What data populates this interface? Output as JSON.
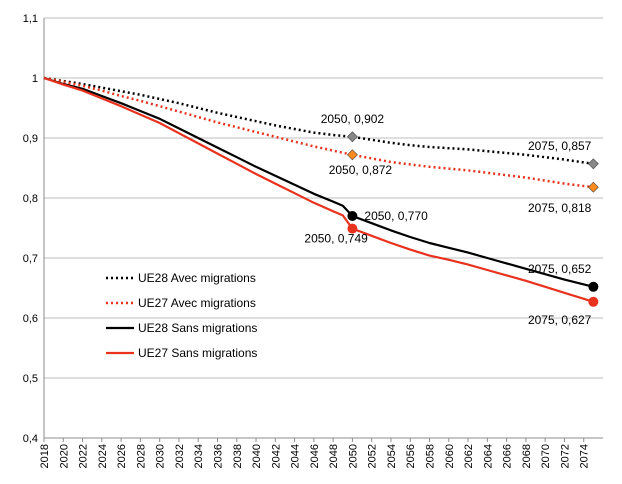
{
  "chart_data": {
    "type": "line",
    "title": "",
    "xlabel": "",
    "ylabel": "",
    "ylim": [
      0.4,
      1.1
    ],
    "xlim": [
      2018,
      2076
    ],
    "grid": "horizontal",
    "yticks": [
      "0,4",
      "0,5",
      "0,6",
      "0,7",
      "0,8",
      "0,9",
      "1",
      "1,1"
    ],
    "ytick_values": [
      0.4,
      0.5,
      0.6,
      0.7,
      0.8,
      0.9,
      1.0,
      1.1
    ],
    "xticks": [
      "2018",
      "2020",
      "2022",
      "2024",
      "2026",
      "2028",
      "2030",
      "2032",
      "2034",
      "2036",
      "2038",
      "2040",
      "2042",
      "2044",
      "2046",
      "2048",
      "2050",
      "2052",
      "2054",
      "2056",
      "2058",
      "2060",
      "2062",
      "2064",
      "2066",
      "2068",
      "2070",
      "2072",
      "2074"
    ],
    "legend_position": "left-lower",
    "series": [
      {
        "name": "UE28 Avec migrations",
        "color": "#000000",
        "style": "dotted",
        "x": [
          2018,
          2020,
          2022,
          2024,
          2026,
          2028,
          2030,
          2032,
          2034,
          2036,
          2038,
          2040,
          2042,
          2044,
          2046,
          2048,
          2050,
          2052,
          2054,
          2056,
          2058,
          2060,
          2062,
          2064,
          2066,
          2068,
          2070,
          2072,
          2075
        ],
        "y": [
          1.0,
          0.995,
          0.99,
          0.984,
          0.978,
          0.972,
          0.965,
          0.958,
          0.95,
          0.942,
          0.935,
          0.928,
          0.921,
          0.915,
          0.909,
          0.905,
          0.902,
          0.897,
          0.892,
          0.888,
          0.885,
          0.883,
          0.881,
          0.878,
          0.875,
          0.872,
          0.868,
          0.864,
          0.857
        ],
        "marker_label": "2050, 0,902",
        "end_label": "2075, 0,857",
        "marker_color": "#888888"
      },
      {
        "name": "UE27 Avec migrations",
        "color": "#e8321e",
        "style": "dotted",
        "x": [
          2018,
          2020,
          2022,
          2024,
          2026,
          2028,
          2030,
          2032,
          2034,
          2036,
          2038,
          2040,
          2042,
          2044,
          2046,
          2048,
          2050,
          2052,
          2054,
          2056,
          2058,
          2060,
          2062,
          2064,
          2066,
          2068,
          2070,
          2072,
          2075
        ],
        "y": [
          1.0,
          0.994,
          0.987,
          0.979,
          0.97,
          0.962,
          0.953,
          0.944,
          0.935,
          0.926,
          0.918,
          0.91,
          0.902,
          0.894,
          0.886,
          0.879,
          0.872,
          0.866,
          0.86,
          0.856,
          0.852,
          0.849,
          0.846,
          0.842,
          0.838,
          0.834,
          0.829,
          0.824,
          0.818
        ],
        "marker_label": "2050, 0,872",
        "end_label": "2075, 0,818",
        "marker_color": "#ff8a1e"
      },
      {
        "name": "UE28 Sans migrations",
        "color": "#000000",
        "style": "solid",
        "x": [
          2018,
          2020,
          2022,
          2024,
          2026,
          2028,
          2030,
          2032,
          2034,
          2036,
          2038,
          2040,
          2042,
          2044,
          2046,
          2048,
          2049,
          2050,
          2052,
          2054,
          2056,
          2058,
          2060,
          2062,
          2064,
          2066,
          2068,
          2070,
          2072,
          2075
        ],
        "y": [
          1.0,
          0.99,
          0.982,
          0.97,
          0.958,
          0.945,
          0.932,
          0.916,
          0.9,
          0.884,
          0.868,
          0.852,
          0.837,
          0.822,
          0.807,
          0.794,
          0.787,
          0.77,
          0.758,
          0.746,
          0.735,
          0.725,
          0.717,
          0.709,
          0.7,
          0.691,
          0.682,
          0.673,
          0.664,
          0.652
        ],
        "marker_label": "2050, 0,770",
        "end_label": "2075, 0,652",
        "marker_color": "#000000"
      },
      {
        "name": "UE27 Sans migrations",
        "color": "#e8321e",
        "style": "solid",
        "x": [
          2018,
          2020,
          2022,
          2024,
          2026,
          2028,
          2030,
          2032,
          2034,
          2036,
          2038,
          2040,
          2042,
          2044,
          2046,
          2048,
          2049,
          2050,
          2052,
          2054,
          2056,
          2058,
          2060,
          2062,
          2064,
          2066,
          2068,
          2070,
          2072,
          2075
        ],
        "y": [
          1.0,
          0.989,
          0.979,
          0.966,
          0.953,
          0.939,
          0.925,
          0.908,
          0.891,
          0.874,
          0.857,
          0.84,
          0.824,
          0.808,
          0.792,
          0.778,
          0.771,
          0.749,
          0.737,
          0.725,
          0.714,
          0.704,
          0.697,
          0.689,
          0.68,
          0.671,
          0.662,
          0.652,
          0.642,
          0.627
        ],
        "marker_label": "2050, 0,749",
        "end_label": "2075, 0,627",
        "marker_color": "#e8321e"
      }
    ]
  }
}
